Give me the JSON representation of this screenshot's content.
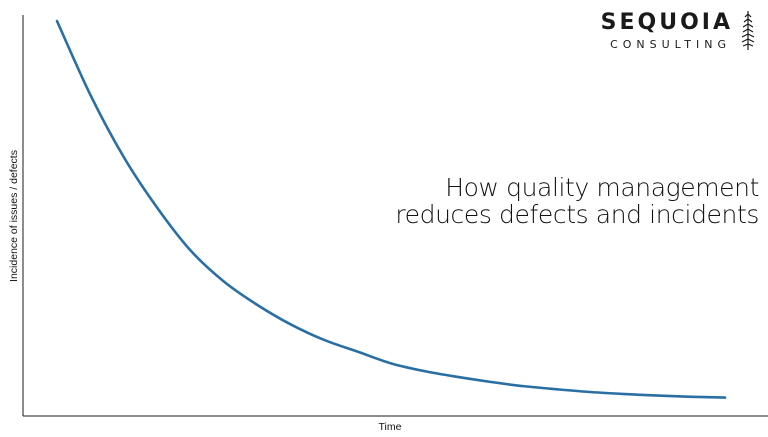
{
  "logo": {
    "name": "SEQUOIA",
    "tagline": "CONSULTING",
    "icon": "sequoia-tree-icon"
  },
  "colors": {
    "curve": "#2a6fa3",
    "axis": "#1a1a1a"
  },
  "chart_data": {
    "type": "line",
    "title": [
      "How quality management",
      "reduces defects and incidents"
    ],
    "xlabel": "Time",
    "ylabel": "Incidence of issues / defects",
    "ticks": "none",
    "grid": false,
    "legend": "none",
    "xlim": [
      0,
      1
    ],
    "ylim": [
      0,
      1
    ],
    "series": [
      {
        "x": [
          0,
          0.05,
          0.1,
          0.15,
          0.2,
          0.25,
          0.3,
          0.35,
          0.4,
          0.45,
          0.5,
          0.55,
          0.6,
          0.65,
          0.7,
          0.75,
          0.8,
          0.85,
          0.9,
          0.95,
          1
        ],
        "values": [
          1,
          0.81,
          0.65,
          0.52,
          0.41,
          0.33,
          0.27,
          0.22,
          0.18,
          0.15,
          0.12,
          0.1,
          0.085,
          0.072,
          0.061,
          0.053,
          0.046,
          0.041,
          0.037,
          0.034,
          0.032
        ]
      }
    ]
  }
}
